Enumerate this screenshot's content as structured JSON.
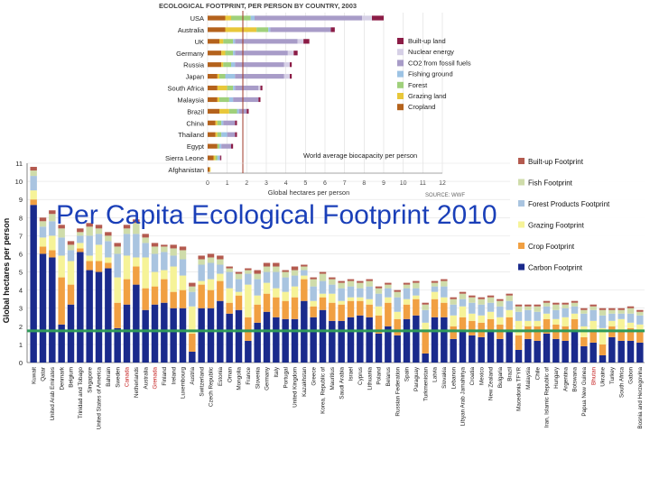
{
  "overlay_title": "Per Capita Ecological Footprint 2010",
  "chart_data": [
    {
      "type": "bar",
      "stacked": true,
      "orientation": "horizontal",
      "title": "ECOLOGICAL FOOTPRINT, PER PERSON BY COUNTRY, 2003",
      "xlabel": "Global hectares per person",
      "xlim": [
        0,
        12
      ],
      "xticks": [
        "0",
        "1",
        "2",
        "3",
        "4",
        "5",
        "6",
        "7",
        "8",
        "9",
        "10",
        "11",
        "12"
      ],
      "source": "SOURCE: WWF",
      "reference_label": "World average biocapacity per person",
      "reference_value": 1.8,
      "categories": [
        "USA",
        "Australia",
        "UK",
        "Germany",
        "Russia",
        "Japan",
        "South Africa",
        "Malaysia",
        "Brazil",
        "China",
        "Thailand",
        "Egypt",
        "Sierra Leone",
        "Afghanistan"
      ],
      "series": [
        {
          "name": "Cropland",
          "color": "#b4621c",
          "values": [
            0.9,
            0.9,
            0.6,
            0.7,
            0.7,
            0.5,
            0.5,
            0.5,
            0.6,
            0.4,
            0.4,
            0.5,
            0.3,
            0.1
          ]
        },
        {
          "name": "Grazing land",
          "color": "#e8c73a",
          "values": [
            0.3,
            1.6,
            0.2,
            0.2,
            0.1,
            0.1,
            0.5,
            0.1,
            0.5,
            0.1,
            0.1,
            0.0,
            0.1,
            0.05
          ]
        },
        {
          "name": "Forest",
          "color": "#9fd07b",
          "values": [
            1.0,
            0.6,
            0.5,
            0.4,
            0.4,
            0.3,
            0.3,
            0.5,
            0.4,
            0.2,
            0.2,
            0.1,
            0.1,
            0.0
          ]
        },
        {
          "name": "Fishing ground",
          "color": "#9dc3e4",
          "values": [
            0.2,
            0.1,
            0.1,
            0.1,
            0.2,
            0.5,
            0.1,
            0.2,
            0.1,
            0.1,
            0.3,
            0.1,
            0.1,
            0.0
          ]
        },
        {
          "name": "CO2 from fossil fuels",
          "color": "#a89cc8",
          "values": [
            5.5,
            3.1,
            3.2,
            2.7,
            2.5,
            2.5,
            1.2,
            1.3,
            0.4,
            0.6,
            0.4,
            0.5,
            0.05,
            0.0
          ]
        },
        {
          "name": "Nuclear energy",
          "color": "#d6d0e6",
          "values": [
            0.5,
            0.0,
            0.3,
            0.3,
            0.3,
            0.3,
            0.1,
            0.0,
            0.0,
            0.0,
            0.0,
            0.0,
            0.0,
            0.0
          ]
        },
        {
          "name": "Built-up land",
          "color": "#8b1c46",
          "values": [
            0.6,
            0.2,
            0.3,
            0.2,
            0.1,
            0.1,
            0.1,
            0.1,
            0.1,
            0.1,
            0.1,
            0.1,
            0.05,
            0.0
          ]
        }
      ]
    },
    {
      "type": "bar",
      "stacked": true,
      "ylabel": "Global hectares per person",
      "ylim": [
        0,
        11
      ],
      "yticks": [
        "0",
        "1",
        "2",
        "3",
        "4",
        "5",
        "6",
        "7",
        "8",
        "9",
        "10",
        "11"
      ],
      "grid": true,
      "reference_value": 1.75,
      "legend_position": "right",
      "highlighted_categories": [
        "Canada",
        "Grenada",
        "Bhutan"
      ],
      "categories": [
        "Kuwait",
        "Qatar",
        "United Arab Emirates",
        "Denmark",
        "Belgium",
        "Trinidad and Tobago",
        "Singapore",
        "United States of America",
        "Bahrain",
        "Sweden",
        "Canada",
        "Netherlands",
        "Australia",
        "Grenada",
        "Finland",
        "Ireland",
        "Luxembourg",
        "Austria",
        "Switzerland",
        "Czech Republic",
        "Estonia",
        "Oman",
        "Mongolia",
        "France",
        "Slovenia",
        "Germany",
        "Italy",
        "Portugal",
        "United Kingdom",
        "Kazakhstan",
        "Greece",
        "Korea, Republic of",
        "Mauritius",
        "Saudi Arabia",
        "Israel",
        "Cyprus",
        "Lithuania",
        "Poland",
        "Belarus",
        "Russian Federation",
        "Spain",
        "Paraguay",
        "Turkmenistan",
        "Latvia",
        "Slovakia",
        "Lebanon",
        "Libyan Arab Jamahiriya",
        "Croatia",
        "Mexico",
        "New Zealand",
        "Bulgaria",
        "Brazil",
        "Macedonia TFYR",
        "Malaysia",
        "Chile",
        "Iran, Islamic Republic of",
        "Hungary",
        "Argentina",
        "Botswana",
        "Papua New Guinea",
        "Bhutan",
        "Ukraine",
        "Turkey",
        "South Africa",
        "Gabon",
        "Bosnia and Herzegovina"
      ],
      "series": [
        {
          "name": "Carbon Footprint",
          "color": "#1a2a8c",
          "values": [
            8.7,
            6.0,
            5.8,
            2.1,
            3.2,
            6.1,
            5.1,
            5.0,
            5.2,
            1.9,
            3.2,
            4.3,
            2.9,
            3.2,
            3.3,
            3.0,
            3.0,
            0.6,
            3.0,
            3.0,
            3.4,
            2.7,
            2.9,
            1.2,
            2.2,
            2.8,
            2.5,
            2.4,
            2.4,
            3.4,
            2.5,
            2.9,
            2.3,
            2.3,
            2.5,
            2.6,
            2.5,
            1.6,
            2.0,
            1.5,
            2.4,
            2.6,
            0.5,
            2.5,
            2.5,
            1.3,
            1.7,
            1.5,
            1.4,
            1.7,
            1.3,
            1.7,
            0.7,
            1.3,
            1.2,
            1.6,
            1.3,
            1.2,
            1.7,
            0.9,
            1.1,
            0.4,
            1.4,
            1.2,
            1.2,
            1.1
          ]
        },
        {
          "name": "Crop Footprint",
          "color": "#f1a042",
          "values": [
            0.3,
            0.4,
            0.4,
            2.6,
            1.1,
            0.2,
            0.5,
            0.6,
            0.3,
            1.4,
            1.4,
            1.0,
            1.2,
            1.0,
            1.3,
            0.9,
            1.0,
            1.0,
            1.3,
            1.0,
            1.1,
            0.6,
            0.8,
            1.3,
            1.0,
            1.0,
            1.1,
            1.0,
            1.2,
            1.2,
            0.6,
            0.7,
            1.0,
            0.9,
            0.9,
            0.8,
            0.7,
            1.0,
            1.3,
            0.9,
            0.8,
            0.9,
            1.3,
            1.0,
            0.8,
            0.7,
            0.8,
            0.8,
            0.8,
            0.7,
            0.8,
            0.8,
            0.8,
            0.7,
            0.8,
            0.8,
            0.8,
            0.8,
            0.7,
            0.5,
            0.6,
            0.6,
            0.6,
            0.6,
            0.7,
            0.6
          ]
        },
        {
          "name": "Grazing Footprint",
          "color": "#f6f398",
          "values": [
            0.5,
            0.5,
            0.8,
            1.2,
            1.3,
            0.3,
            0.3,
            0.9,
            0.3,
            1.4,
            1.3,
            0.5,
            1.7,
            0.8,
            0.5,
            1.4,
            0.8,
            1.5,
            0.2,
            0.6,
            0.4,
            0.8,
            0.2,
            1.8,
            0.5,
            0.6,
            0.5,
            0.5,
            0.6,
            0.2,
            0.3,
            0.2,
            0.5,
            0.2,
            0.2,
            0.2,
            0.3,
            0.5,
            0.3,
            0.4,
            0.3,
            0.2,
            0.4,
            0.4,
            0.3,
            0.6,
            0.6,
            0.4,
            0.4,
            0.4,
            0.4,
            0.4,
            0.8,
            0.3,
            0.3,
            0.3,
            0.3,
            0.5,
            0.3,
            0.6,
            0.6,
            0.9,
            0.3,
            0.6,
            0.3,
            0.4
          ]
        },
        {
          "name": "Forest Products Footprint",
          "color": "#a9c4e0",
          "values": [
            0.8,
            0.6,
            0.8,
            1.0,
            0.6,
            0.4,
            1.1,
            0.6,
            0.9,
            1.3,
            1.2,
            1.3,
            0.8,
            1.0,
            1.0,
            0.6,
            0.9,
            0.8,
            0.9,
            0.9,
            0.5,
            0.9,
            0.7,
            0.6,
            0.9,
            0.6,
            0.9,
            0.8,
            0.6,
            0.3,
            0.8,
            0.7,
            0.5,
            0.7,
            0.6,
            0.5,
            0.7,
            0.7,
            0.5,
            0.8,
            0.6,
            0.4,
            0.7,
            0.3,
            0.6,
            0.6,
            0.4,
            0.6,
            0.6,
            0.5,
            0.6,
            0.5,
            0.5,
            0.6,
            0.5,
            0.4,
            0.5,
            0.5,
            0.4,
            0.7,
            0.6,
            0.7,
            0.4,
            0.3,
            0.5,
            0.5
          ]
        },
        {
          "name": "Fish Footprint",
          "color": "#cfdcaa",
          "values": [
            0.3,
            0.3,
            0.4,
            0.5,
            0.3,
            0.2,
            0.5,
            0.3,
            0.3,
            0.4,
            0.3,
            0.6,
            0.3,
            0.4,
            0.3,
            0.4,
            0.5,
            0.3,
            0.3,
            0.3,
            0.3,
            0.2,
            0.3,
            0.2,
            0.3,
            0.3,
            0.3,
            0.3,
            0.3,
            0.2,
            0.4,
            0.4,
            0.3,
            0.3,
            0.3,
            0.3,
            0.3,
            0.3,
            0.2,
            0.3,
            0.2,
            0.3,
            0.3,
            0.2,
            0.3,
            0.3,
            0.3,
            0.3,
            0.3,
            0.3,
            0.3,
            0.3,
            0.3,
            0.2,
            0.3,
            0.2,
            0.3,
            0.2,
            0.2,
            0.2,
            0.2,
            0.3,
            0.2,
            0.2,
            0.3,
            0.2
          ]
        },
        {
          "name": "Built-up Footprint",
          "color": "#b45a4f",
          "values": [
            0.2,
            0.2,
            0.2,
            0.2,
            0.2,
            0.2,
            0.2,
            0.2,
            0.2,
            0.2,
            0.2,
            0.2,
            0.2,
            0.2,
            0.1,
            0.2,
            0.2,
            0.2,
            0.2,
            0.2,
            0.2,
            0.1,
            0.1,
            0.1,
            0.2,
            0.2,
            0.2,
            0.1,
            0.2,
            0.1,
            0.1,
            0.1,
            0.1,
            0.1,
            0.1,
            0.1,
            0.1,
            0.1,
            0.1,
            0.1,
            0.1,
            0.1,
            0.1,
            0.1,
            0.1,
            0.1,
            0.1,
            0.1,
            0.1,
            0.1,
            0.1,
            0.1,
            0.1,
            0.1,
            0.1,
            0.1,
            0.1,
            0.1,
            0.1,
            0.1,
            0.1,
            0.1,
            0.1,
            0.1,
            0.1,
            0.1
          ]
        }
      ]
    }
  ]
}
